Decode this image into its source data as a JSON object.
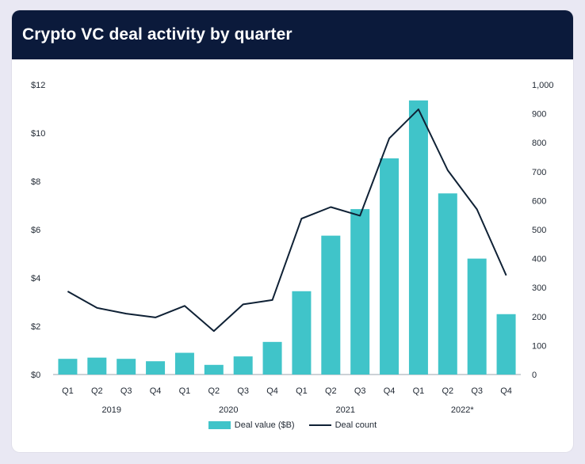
{
  "header": {
    "title": "Crypto VC deal activity by quarter"
  },
  "colors": {
    "bar": "#40c4c9",
    "line": "#0f2135",
    "header_bg": "#0b1a3b"
  },
  "chart_data": {
    "type": "bar",
    "title": "Crypto VC deal activity by quarter",
    "categories": [
      "Q1",
      "Q2",
      "Q3",
      "Q4",
      "Q1",
      "Q2",
      "Q3",
      "Q4",
      "Q1",
      "Q2",
      "Q3",
      "Q4",
      "Q1",
      "Q2",
      "Q3",
      "Q4"
    ],
    "year_groups": [
      {
        "label": "2019",
        "start": 0,
        "end": 3
      },
      {
        "label": "2020",
        "start": 4,
        "end": 7
      },
      {
        "label": "2021",
        "start": 8,
        "end": 11
      },
      {
        "label": "2022*",
        "start": 12,
        "end": 15
      }
    ],
    "series": [
      {
        "name": "Deal value ($B)",
        "type": "bar",
        "axis": "left",
        "values": [
          0.65,
          0.7,
          0.65,
          0.55,
          0.9,
          0.4,
          0.75,
          1.35,
          3.45,
          5.75,
          6.85,
          8.95,
          11.35,
          7.5,
          4.8,
          2.5
        ]
      },
      {
        "name": "Deal count",
        "type": "line",
        "axis": "right",
        "values": [
          287,
          230,
          210,
          197,
          237,
          150,
          242,
          257,
          538,
          578,
          548,
          815,
          915,
          705,
          570,
          342
        ]
      }
    ],
    "y_left": {
      "min": 0,
      "max": 12,
      "ticks": [
        "$0",
        "$2",
        "$4",
        "$6",
        "$8",
        "$10",
        "$12"
      ],
      "tick_values": [
        0,
        2,
        4,
        6,
        8,
        10,
        12
      ]
    },
    "y_right": {
      "min": 0,
      "max": 1000,
      "ticks": [
        "0",
        "100",
        "200",
        "300",
        "400",
        "500",
        "600",
        "700",
        "800",
        "900",
        "1,000"
      ],
      "tick_values": [
        0,
        100,
        200,
        300,
        400,
        500,
        600,
        700,
        800,
        900,
        1000
      ]
    },
    "legend": [
      {
        "label": "Deal value ($B)",
        "kind": "bar"
      },
      {
        "label": "Deal count",
        "kind": "line"
      }
    ],
    "legend_position": "bottom-center",
    "grid": false
  }
}
